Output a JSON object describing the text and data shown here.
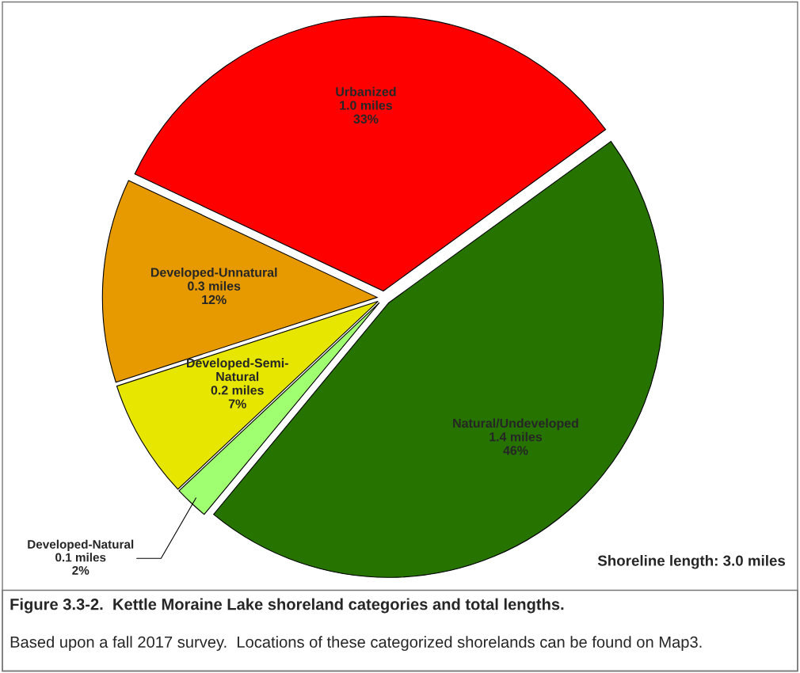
{
  "chart_data": {
    "type": "pie",
    "title": "Figure 3.3-2.  Kettle Moraine Lake shoreland categories and total lengths.",
    "categories": [
      "Urbanized",
      "Developed-Unnatural",
      "Developed-Semi-\nNatural",
      "Developed-Natural",
      "Natural/Undeveloped"
    ],
    "values": [
      33,
      12,
      7,
      2,
      46
    ],
    "value_labels": [
      "1.0 miles\n33%",
      "0.3 miles\n12%",
      "0.2 miles\n7%",
      "0.1 miles\n2%",
      "1.4 miles\n46%"
    ],
    "colors": [
      "#ff0000",
      "#e69a00",
      "#e6e600",
      "#a0ff70",
      "#267300"
    ],
    "annotations": [
      "Shoreline length: 3.0 miles",
      "Based upon a fall 2017 survey.  Locations of these categorized shorelands can be found on Map3."
    ],
    "legend": false
  }
}
